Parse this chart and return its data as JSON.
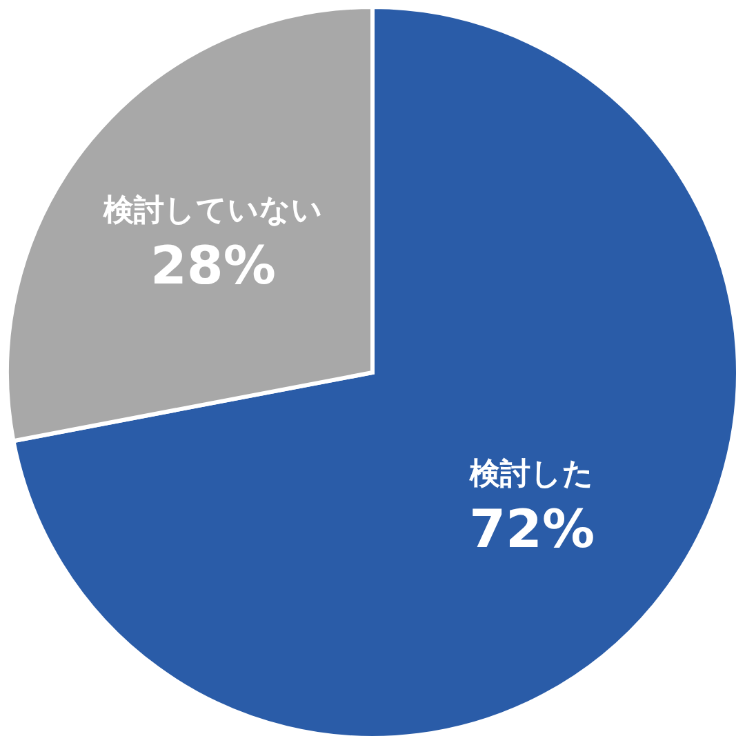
{
  "chart_data": {
    "type": "pie",
    "categories": [
      "検討した",
      "検討していない"
    ],
    "values": [
      72,
      28
    ],
    "colors": [
      "#2a5ca8",
      "#a8a8a8"
    ],
    "value_labels": [
      "72%",
      "28%"
    ]
  }
}
